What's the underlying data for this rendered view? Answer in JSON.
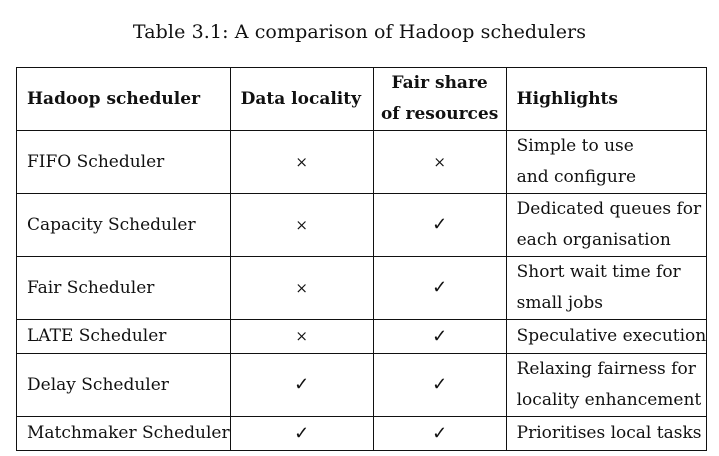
{
  "caption": "Table 3.1: A comparison of Hadoop schedulers",
  "columns": {
    "scheduler": "Hadoop scheduler",
    "locality": "Data locality",
    "fair_line1": "Fair share",
    "fair_line2": "of resources",
    "highlights": "Highlights"
  },
  "rows": [
    {
      "name": "FIFO Scheduler",
      "locality": "×",
      "fair": "×",
      "h1": "Simple to use",
      "h2": "and configure"
    },
    {
      "name": "Capacity Scheduler",
      "locality": "×",
      "fair": "✓",
      "h1": "Dedicated queues for",
      "h2": "each organisation"
    },
    {
      "name": "Fair Scheduler",
      "locality": "×",
      "fair": "✓",
      "h1": "Short wait time for",
      "h2": "small jobs"
    },
    {
      "name": "LATE Scheduler",
      "locality": "×",
      "fair": "✓",
      "h1": "Speculative execution"
    },
    {
      "name": "Delay Scheduler",
      "locality": "✓",
      "fair": "✓",
      "h1": "Relaxing fairness for",
      "h2": "locality enhancement"
    },
    {
      "name": "Matchmaker Scheduler",
      "locality": "✓",
      "fair": "✓",
      "h1": "Prioritises local tasks"
    }
  ]
}
